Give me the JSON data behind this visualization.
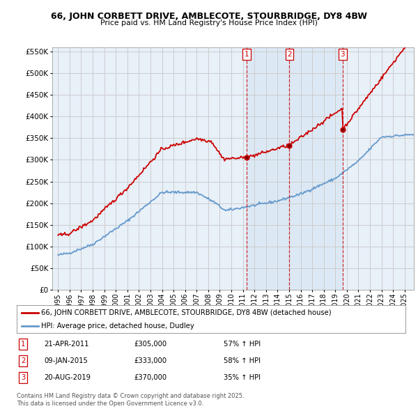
{
  "title": "66, JOHN CORBETT DRIVE, AMBLECOTE, STOURBRIDGE, DY8 4BW",
  "subtitle": "Price paid vs. HM Land Registry's House Price Index (HPI)",
  "legend_line1": "66, JOHN CORBETT DRIVE, AMBLECOTE, STOURBRIDGE, DY8 4BW (detached house)",
  "legend_line2": "HPI: Average price, detached house, Dudley",
  "footer_line1": "Contains HM Land Registry data © Crown copyright and database right 2025.",
  "footer_line2": "This data is licensed under the Open Government Licence v3.0.",
  "transactions": [
    {
      "num": 1,
      "date": "21-APR-2011",
      "price": "£305,000",
      "change": "57% ↑ HPI"
    },
    {
      "num": 2,
      "date": "09-JAN-2015",
      "price": "£333,000",
      "change": "58% ↑ HPI"
    },
    {
      "num": 3,
      "date": "20-AUG-2019",
      "price": "£370,000",
      "change": "35% ↑ HPI"
    }
  ],
  "transaction_dates": [
    2011.31,
    2015.03,
    2019.64
  ],
  "transaction_prices": [
    305000,
    333000,
    370000
  ],
  "ylim": [
    0,
    560000
  ],
  "yticks": [
    0,
    50000,
    100000,
    150000,
    200000,
    250000,
    300000,
    350000,
    400000,
    450000,
    500000,
    550000
  ],
  "xlim_start": 1994.5,
  "xlim_end": 2025.8,
  "red_color": "#cc0000",
  "blue_color": "#6699cc",
  "grid_color": "#cccccc",
  "plot_bg": "#e8f0f8",
  "shade_color": "#c8dcf0"
}
